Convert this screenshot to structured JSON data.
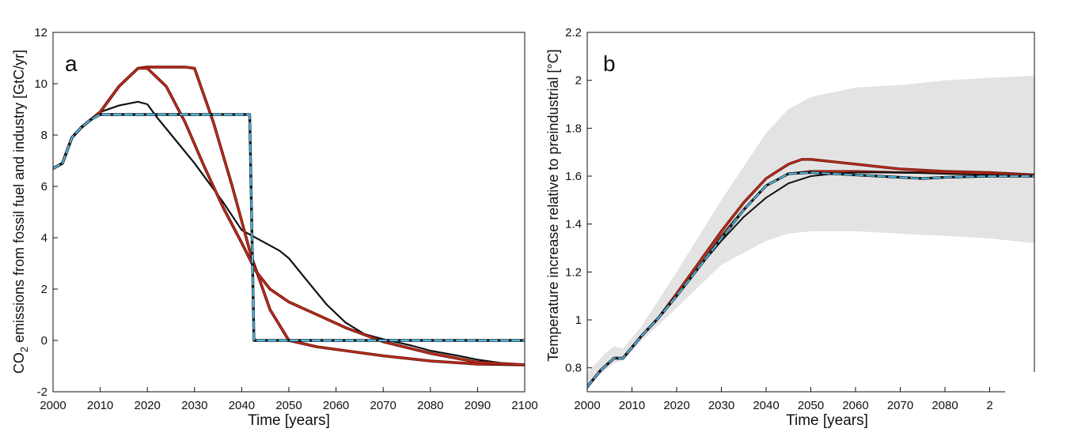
{
  "chart_data": [
    {
      "type": "line",
      "panel_label": "a",
      "xlabel": "Time [years]",
      "ylabel_prefix": "CO",
      "ylabel_sub": "2",
      "ylabel_suffix": " emissions from fossil fuel and industry [GtC/yr]",
      "xlim": [
        2000,
        2100
      ],
      "ylim": [
        -2,
        12
      ],
      "xticks": [
        "2000",
        "2010",
        "2020",
        "2030",
        "2040",
        "2050",
        "2060",
        "2070",
        "2080",
        "2090",
        "2100"
      ],
      "yticks": [
        "-2",
        "0",
        "2",
        "4",
        "6",
        "8",
        "10",
        "12"
      ],
      "grid": false,
      "series": [
        {
          "color": "#111111",
          "dash": "",
          "width": 2.2,
          "x": [
            2000,
            2002,
            2004,
            2006,
            2008,
            2010,
            2014,
            2018,
            2020,
            2022,
            2026,
            2030,
            2036,
            2040,
            2044,
            2048,
            2050,
            2054,
            2058,
            2062,
            2066,
            2070,
            2076,
            2080,
            2086,
            2090,
            2095,
            2100
          ],
          "y": [
            6.7,
            6.9,
            7.9,
            8.3,
            8.6,
            8.9,
            9.15,
            9.3,
            9.2,
            8.7,
            7.8,
            6.9,
            5.4,
            4.3,
            3.9,
            3.5,
            3.2,
            2.3,
            1.4,
            0.7,
            0.25,
            0.05,
            -0.2,
            -0.4,
            -0.6,
            -0.75,
            -0.88,
            -0.95
          ]
        },
        {
          "color": "#6a1a10",
          "dash": "",
          "width": 3.6,
          "x": [
            2000,
            2002,
            2004,
            2006,
            2008,
            2010,
            2014,
            2018,
            2020,
            2024,
            2028,
            2030,
            2034,
            2038,
            2042,
            2046,
            2050,
            2056,
            2062,
            2070,
            2080,
            2090,
            2100
          ],
          "y": [
            6.7,
            6.9,
            7.9,
            8.3,
            8.6,
            8.9,
            9.9,
            10.6,
            10.65,
            10.65,
            10.65,
            10.6,
            8.5,
            6.0,
            3.3,
            1.2,
            0.0,
            -0.25,
            -0.4,
            -0.6,
            -0.8,
            -0.92,
            -0.95
          ]
        },
        {
          "color": "#e0301e",
          "dash": "",
          "width": 1.3,
          "x": [
            2000,
            2002,
            2004,
            2006,
            2008,
            2010,
            2014,
            2018,
            2020,
            2024,
            2028,
            2030,
            2034,
            2038,
            2042,
            2046,
            2050,
            2056,
            2062,
            2070,
            2080,
            2090,
            2100
          ],
          "y": [
            6.7,
            6.9,
            7.9,
            8.3,
            8.6,
            8.9,
            9.9,
            10.6,
            10.65,
            10.65,
            10.65,
            10.6,
            8.5,
            6.0,
            3.3,
            1.2,
            0.0,
            -0.25,
            -0.4,
            -0.6,
            -0.8,
            -0.92,
            -0.95
          ]
        },
        {
          "color": "#6a1a10",
          "dash": "",
          "width": 3.6,
          "x": [
            2000,
            2002,
            2004,
            2006,
            2008,
            2010,
            2014,
            2018,
            2020,
            2024,
            2028,
            2032,
            2036,
            2040,
            2043,
            2046,
            2050,
            2056,
            2062,
            2070,
            2080,
            2090,
            2100
          ],
          "y": [
            6.7,
            6.9,
            7.9,
            8.3,
            8.6,
            8.9,
            9.9,
            10.6,
            10.6,
            9.9,
            8.5,
            6.8,
            5.2,
            3.8,
            2.7,
            2.0,
            1.5,
            1.0,
            0.5,
            -0.05,
            -0.5,
            -0.85,
            -0.95
          ]
        },
        {
          "color": "#e0301e",
          "dash": "",
          "width": 1.3,
          "x": [
            2000,
            2002,
            2004,
            2006,
            2008,
            2010,
            2014,
            2018,
            2020,
            2024,
            2028,
            2032,
            2036,
            2040,
            2043,
            2046,
            2050,
            2056,
            2062,
            2070,
            2080,
            2090,
            2100
          ],
          "y": [
            6.7,
            6.9,
            7.9,
            8.3,
            8.6,
            8.9,
            9.9,
            10.6,
            10.6,
            9.9,
            8.5,
            6.8,
            5.2,
            3.8,
            2.7,
            2.0,
            1.5,
            1.0,
            0.5,
            -0.05,
            -0.5,
            -0.85,
            -0.95
          ]
        },
        {
          "color": "#111111",
          "dash": "",
          "width": 3.4,
          "x": [
            2000,
            2002,
            2004,
            2006,
            2008,
            2010,
            2041.7,
            2042.6,
            2100
          ],
          "y": [
            6.7,
            6.9,
            7.9,
            8.3,
            8.6,
            8.8,
            8.8,
            0.0,
            0.0
          ]
        },
        {
          "color": "#4ab9e3",
          "dash": "9 5",
          "width": 2.2,
          "x": [
            2000,
            2002,
            2004,
            2006,
            2008,
            2010,
            2041.7,
            2042.6,
            2100
          ],
          "y": [
            6.7,
            6.9,
            7.9,
            8.3,
            8.6,
            8.8,
            8.8,
            0.0,
            0.0
          ]
        }
      ]
    },
    {
      "type": "line",
      "panel_label": "b",
      "xlabel": "Time [years]",
      "ylabel": "Temperature increase relative to preindustrial [°C]",
      "xlim": [
        2000,
        2100
      ],
      "ylim": [
        0.7,
        2.2
      ],
      "xticks": [
        "2000",
        "2010",
        "2020",
        "2030",
        "2040",
        "2050",
        "2060",
        "2070",
        "2080",
        "2"
      ],
      "yticks": [
        "0.8",
        "1",
        "1.2",
        "1.4",
        "1.6",
        "1.8",
        "2",
        "2.2"
      ],
      "grid": false,
      "uncertainty_band": {
        "color": "#e3e3e3",
        "x": [
          2000,
          2004,
          2006,
          2008,
          2012,
          2020,
          2030,
          2040,
          2045,
          2050,
          2060,
          2070,
          2080,
          2090,
          2100
        ],
        "upper": [
          0.78,
          0.86,
          0.89,
          0.88,
          0.97,
          1.2,
          1.5,
          1.78,
          1.88,
          1.93,
          1.97,
          1.98,
          2.0,
          2.01,
          2.02
        ],
        "lower": [
          0.72,
          0.79,
          0.82,
          0.83,
          0.91,
          1.05,
          1.23,
          1.33,
          1.36,
          1.37,
          1.37,
          1.36,
          1.35,
          1.34,
          1.32
        ]
      },
      "series": [
        {
          "color": "#6a1a10",
          "dash": "",
          "width": 3.4,
          "x": [
            2000,
            2003,
            2006,
            2008,
            2012,
            2016,
            2020,
            2025,
            2030,
            2035,
            2040,
            2045,
            2048,
            2050,
            2055,
            2060,
            2065,
            2070,
            2080,
            2090,
            2100
          ],
          "y": [
            0.72,
            0.79,
            0.84,
            0.84,
            0.93,
            1.01,
            1.11,
            1.24,
            1.37,
            1.49,
            1.59,
            1.65,
            1.67,
            1.67,
            1.66,
            1.65,
            1.64,
            1.63,
            1.62,
            1.615,
            1.605
          ]
        },
        {
          "color": "#e0301e",
          "dash": "",
          "width": 1.2,
          "x": [
            2000,
            2003,
            2006,
            2008,
            2012,
            2016,
            2020,
            2025,
            2030,
            2035,
            2040,
            2045,
            2048,
            2050,
            2055,
            2060,
            2065,
            2070,
            2080,
            2090,
            2100
          ],
          "y": [
            0.72,
            0.79,
            0.84,
            0.84,
            0.93,
            1.01,
            1.11,
            1.24,
            1.37,
            1.49,
            1.59,
            1.65,
            1.67,
            1.67,
            1.66,
            1.65,
            1.64,
            1.63,
            1.62,
            1.615,
            1.605
          ]
        },
        {
          "color": "#6a1a10",
          "dash": "",
          "width": 3.0,
          "x": [
            2000,
            2003,
            2006,
            2008,
            2012,
            2016,
            2020,
            2025,
            2030,
            2035,
            2040,
            2045,
            2050,
            2060,
            2070,
            2080,
            2090,
            2100
          ],
          "y": [
            0.72,
            0.79,
            0.84,
            0.84,
            0.93,
            1.01,
            1.1,
            1.22,
            1.35,
            1.46,
            1.56,
            1.61,
            1.62,
            1.62,
            1.615,
            1.615,
            1.61,
            1.605
          ]
        },
        {
          "color": "#e0301e",
          "dash": "",
          "width": 1.1,
          "x": [
            2000,
            2003,
            2006,
            2008,
            2012,
            2016,
            2020,
            2025,
            2030,
            2035,
            2040,
            2045,
            2050,
            2060,
            2070,
            2080,
            2090,
            2100
          ],
          "y": [
            0.72,
            0.79,
            0.84,
            0.84,
            0.93,
            1.01,
            1.1,
            1.22,
            1.35,
            1.46,
            1.56,
            1.61,
            1.62,
            1.62,
            1.615,
            1.615,
            1.61,
            1.605
          ]
        },
        {
          "color": "#111111",
          "dash": "",
          "width": 2.0,
          "x": [
            2000,
            2003,
            2006,
            2008,
            2012,
            2016,
            2020,
            2025,
            2030,
            2035,
            2040,
            2045,
            2050,
            2055,
            2060,
            2070,
            2080,
            2090,
            2100
          ],
          "y": [
            0.72,
            0.79,
            0.84,
            0.84,
            0.93,
            1.01,
            1.1,
            1.22,
            1.33,
            1.43,
            1.51,
            1.57,
            1.6,
            1.61,
            1.615,
            1.615,
            1.61,
            1.605,
            1.6
          ]
        },
        {
          "color": "#111111",
          "dash": "",
          "width": 3.2,
          "x": [
            2000,
            2003,
            2006,
            2008,
            2012,
            2016,
            2020,
            2025,
            2030,
            2035,
            2040,
            2045,
            2050,
            2060,
            2065,
            2070,
            2075,
            2080,
            2090,
            2100
          ],
          "y": [
            0.72,
            0.79,
            0.84,
            0.84,
            0.93,
            1.01,
            1.1,
            1.22,
            1.34,
            1.46,
            1.56,
            1.61,
            1.615,
            1.605,
            1.6,
            1.595,
            1.59,
            1.595,
            1.6,
            1.6
          ]
        },
        {
          "color": "#4ab9e3",
          "dash": "9 5",
          "width": 2.0,
          "x": [
            2000,
            2003,
            2006,
            2008,
            2012,
            2016,
            2020,
            2025,
            2030,
            2035,
            2040,
            2045,
            2050,
            2060,
            2065,
            2070,
            2075,
            2080,
            2090,
            2100
          ],
          "y": [
            0.72,
            0.79,
            0.84,
            0.84,
            0.93,
            1.01,
            1.1,
            1.22,
            1.34,
            1.46,
            1.56,
            1.61,
            1.615,
            1.605,
            1.6,
            1.595,
            1.59,
            1.595,
            1.6,
            1.6
          ]
        }
      ]
    }
  ]
}
